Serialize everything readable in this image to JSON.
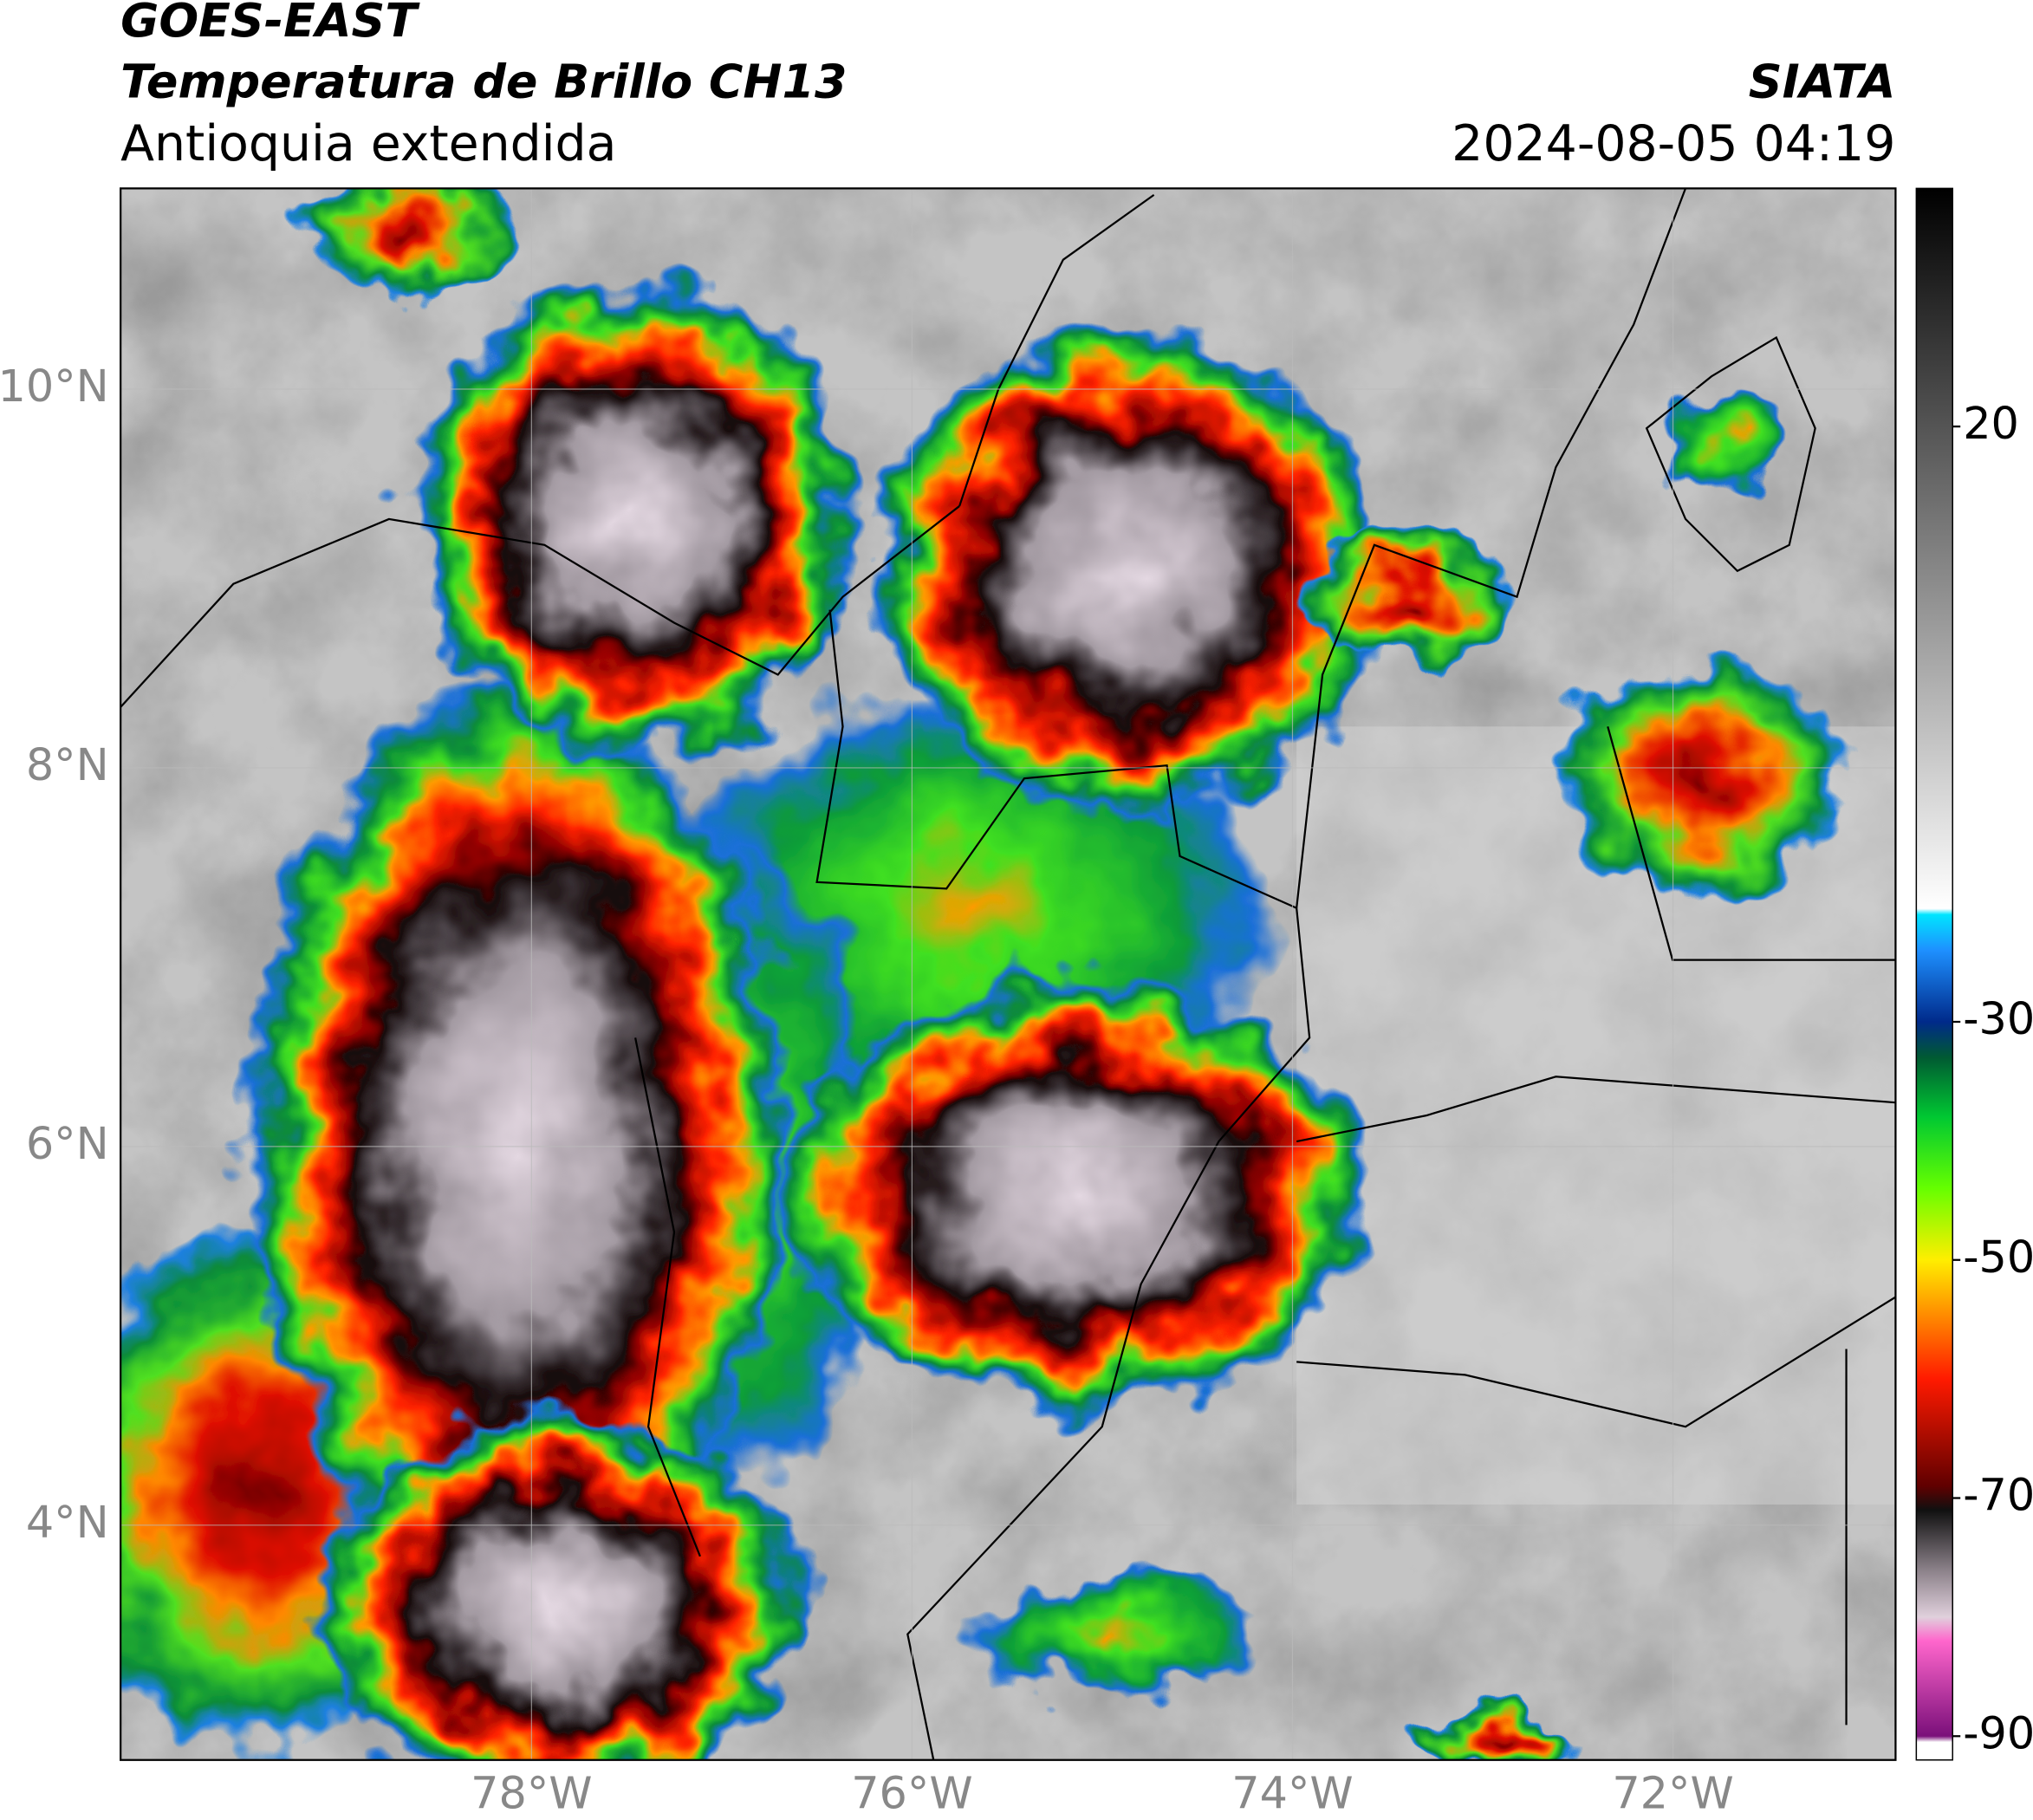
{
  "header": {
    "title": "GOES-EAST",
    "subtitle": "Temperatura de Brillo CH13",
    "region": "Antioquia extendida",
    "source": "SIATA",
    "timestamp": "2024-08-05 04:19"
  },
  "map": {
    "xlim": [
      -80.16,
      -70.83
    ],
    "ylim": [
      2.76,
      11.06
    ],
    "xticks": [
      {
        "value": -78,
        "label": "78°W"
      },
      {
        "value": -76,
        "label": "76°W"
      },
      {
        "value": -74,
        "label": "74°W"
      },
      {
        "value": -72,
        "label": "72°W"
      }
    ],
    "yticks": [
      {
        "value": 4,
        "label": "4°N"
      },
      {
        "value": 6,
        "label": "6°N"
      },
      {
        "value": 8,
        "label": "8°N"
      },
      {
        "value": 10,
        "label": "10°N"
      }
    ],
    "grid": true
  },
  "colorbar": {
    "lim": [
      -92,
      40
    ],
    "ticks": [
      -90,
      -70,
      -50,
      -30,
      20
    ],
    "colormap": [
      [
        -92,
        "#ffffff"
      ],
      [
        -90.5,
        "#ffffff"
      ],
      [
        -90,
        "#7a0f7a"
      ],
      [
        -82,
        "#ff66cc"
      ],
      [
        -80,
        "#e0d0dc"
      ],
      [
        -76,
        "#8a8088"
      ],
      [
        -71,
        "#101010"
      ],
      [
        -69,
        "#600000"
      ],
      [
        -60,
        "#ff1a00"
      ],
      [
        -54,
        "#ff9900"
      ],
      [
        -50,
        "#ffee00"
      ],
      [
        -44,
        "#66ff00"
      ],
      [
        -38,
        "#00c832"
      ],
      [
        -33,
        "#005a32"
      ],
      [
        -30,
        "#002a8a"
      ],
      [
        -24,
        "#1e90ff"
      ],
      [
        -21,
        "#00e5ff"
      ],
      [
        -20.5,
        "#ffffff"
      ],
      [
        40,
        "#000000"
      ]
    ]
  }
}
